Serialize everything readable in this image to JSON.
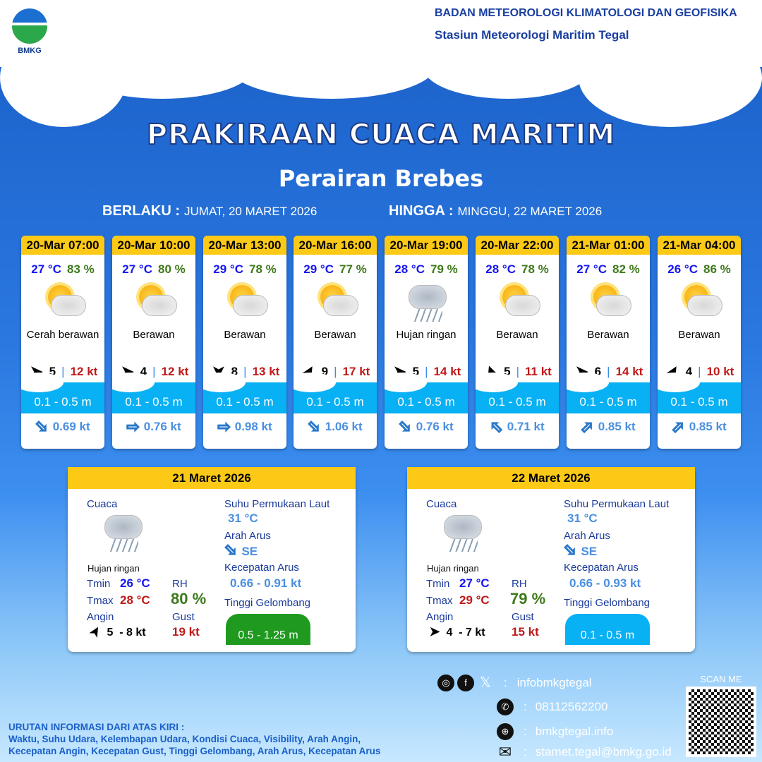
{
  "header": {
    "logo_text": "BMKG",
    "org": "BADAN METEOROLOGI KLIMATOLOGI DAN GEOFISIKA",
    "station": "Stasiun Meteorologi Maritim Tegal"
  },
  "title": "PRAKIRAAN CUACA MARITIM",
  "subtitle": "Perairan Brebes",
  "valid_from_label": "BERLAKU :",
  "valid_from": "JUMAT, 20 MARET 2026",
  "valid_to_label": "HINGGA :",
  "valid_to": "MINGGU, 22 MARET 2026",
  "forecasts": [
    {
      "time": "20-Mar 07:00",
      "temp": "27 °C",
      "rh": "83 %",
      "icon": "sun-cloud-icon",
      "weather": "Cerah berawan",
      "wind_dir_deg": 0,
      "wind": "5",
      "gust": "12 kt",
      "wave": "0.1 - 0.5 m",
      "current_dir_deg": 45,
      "current": "0.69 kt"
    },
    {
      "time": "20-Mar 10:00",
      "temp": "27 °C",
      "rh": "80 %",
      "icon": "cloud-icon",
      "weather": "Berawan",
      "wind_dir_deg": 0,
      "wind": "4",
      "gust": "12 kt",
      "wave": "0.1 - 0.5 m",
      "current_dir_deg": 0,
      "current": "0.76 kt"
    },
    {
      "time": "20-Mar 13:00",
      "temp": "29 °C",
      "rh": "78 %",
      "icon": "cloud-icon",
      "weather": "Berawan",
      "wind_dir_deg": 90,
      "wind": "8",
      "gust": "13 kt",
      "wave": "0.1 - 0.5 m",
      "current_dir_deg": 0,
      "current": "0.98 kt"
    },
    {
      "time": "20-Mar 16:00",
      "temp": "29 °C",
      "rh": "77 %",
      "icon": "cloud-icon",
      "weather": "Berawan",
      "wind_dir_deg": -60,
      "wind": "9",
      "gust": "17 kt",
      "wave": "0.1 - 0.5 m",
      "current_dir_deg": 45,
      "current": "1.06 kt"
    },
    {
      "time": "20-Mar 19:00",
      "temp": "28 °C",
      "rh": "79 %",
      "icon": "rain-icon",
      "weather": "Hujan ringan",
      "wind_dir_deg": 0,
      "wind": "5",
      "gust": "14 kt",
      "wave": "0.1 - 0.5 m",
      "current_dir_deg": 45,
      "current": "0.76 kt"
    },
    {
      "time": "20-Mar 22:00",
      "temp": "28 °C",
      "rh": "78 %",
      "icon": "cloud-icon",
      "weather": "Berawan",
      "wind_dir_deg": -110,
      "wind": "5",
      "gust": "11 kt",
      "wave": "0.1 - 0.5 m",
      "current_dir_deg": -135,
      "current": "0.71 kt"
    },
    {
      "time": "21-Mar 01:00",
      "temp": "27 °C",
      "rh": "82 %",
      "icon": "cloud-icon",
      "weather": "Berawan",
      "wind_dir_deg": 0,
      "wind": "6",
      "gust": "14 kt",
      "wave": "0.1 - 0.5 m",
      "current_dir_deg": -45,
      "current": "0.85 kt"
    },
    {
      "time": "21-Mar 04:00",
      "temp": "26 °C",
      "rh": "86 %",
      "icon": "cloud-icon",
      "weather": "Berawan",
      "wind_dir_deg": -60,
      "wind": "4",
      "gust": "10 kt",
      "wave": "0.1 - 0.5 m",
      "current_dir_deg": -45,
      "current": "0.85 kt"
    }
  ],
  "daily": [
    {
      "date": "21 Maret 2026",
      "weather_label": "Cuaca",
      "weather": "Hujan ringan",
      "tmin_label": "Tmin",
      "tmin": "26 °C",
      "tmax_label": "Tmax",
      "tmax": "28 °C",
      "rh_label": "RH",
      "rh": "80 %",
      "wind_label": "Angin",
      "wind_dir_deg": -60,
      "wind": "5  - 8 kt",
      "gust_label": "Gust",
      "gust": "19 kt",
      "sst_label": "Suhu Permukaan Laut",
      "sst": "31 °C",
      "current_dir_label": "Arah Arus",
      "current_dir": "SE",
      "current_speed_label": "Kecepatan Arus",
      "current_speed": "0.66 - 0.91 kt",
      "wave_label": "Tinggi Gelombang",
      "wave": "0.5 - 1.25 m",
      "wave_color": "#1f9a1f"
    },
    {
      "date": "22 Maret 2026",
      "weather_label": "Cuaca",
      "weather": "Hujan ringan",
      "tmin_label": "Tmin",
      "tmin": "27 °C",
      "tmax_label": "Tmax",
      "tmax": "29 °C",
      "rh_label": "RH",
      "rh": "79 %",
      "wind_label": "Angin",
      "wind_dir_deg": 0,
      "wind": "4  - 7 kt",
      "gust_label": "Gust",
      "gust": "15 kt",
      "sst_label": "Suhu Permukaan Laut",
      "sst": "31 °C",
      "current_dir_label": "Arah Arus",
      "current_dir": "SE",
      "current_speed_label": "Kecepatan Arus",
      "current_speed": "0.66 - 0.93 kt",
      "wave_label": "Tinggi Gelombang",
      "wave": "0.1 - 0.5 m",
      "wave_color": "#08b0f4"
    }
  ],
  "contact": {
    "social": "infobmkgtegal",
    "phone": "08112562200",
    "web": "bmkgtegal.info",
    "email": "stamet.tegal@bmkg.go.id",
    "sep": ":",
    "scan": "SCAN ME"
  },
  "legend": {
    "title": "URUTAN INFORMASI DARI ATAS KIRI :",
    "line1": "Waktu, Suhu Udara, Kelembapan Udara, Kondisi Cuaca, Visibility, Arah Angin,",
    "line2": "Kecepatan Angin, Kecepatan Gust, Tinggi Gelombang, Arah Arus, Kecepatan Arus"
  },
  "colors": {
    "header_yellow": "#fcc916",
    "wave": "#08b0f4",
    "temp": "#1515f0",
    "rh": "#3d7a1a",
    "gust": "#c01818"
  }
}
